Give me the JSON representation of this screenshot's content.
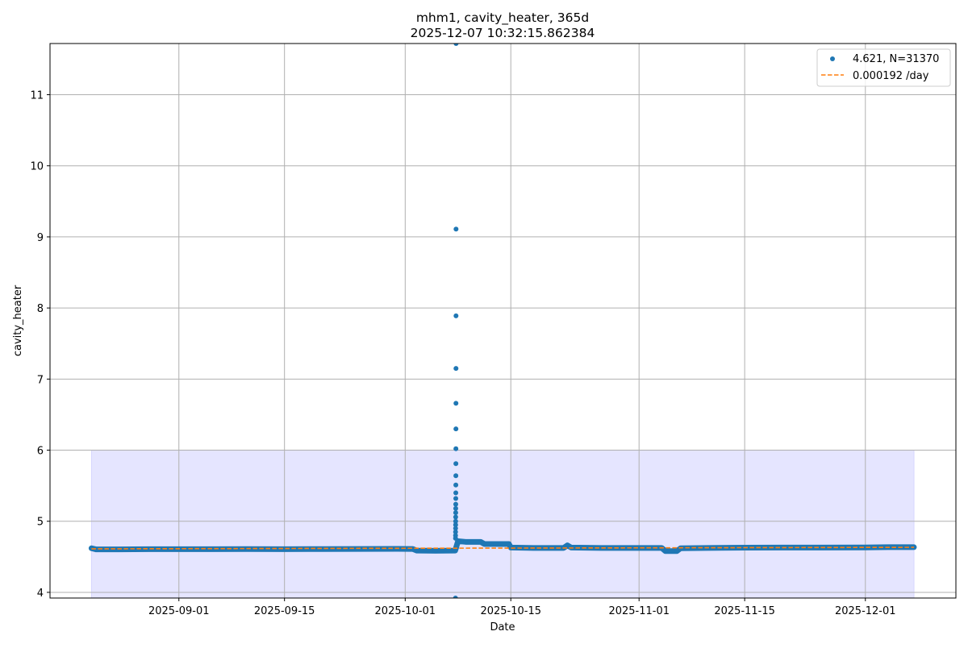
{
  "chart_data": {
    "type": "scatter",
    "title": "mhm1, cavity_heater, 365d",
    "subtitle": "2025-12-07 10:32:15.862384",
    "xlabel": "Date",
    "ylabel": "cavity_heater",
    "xlim": [
      "2025-08-14T22:00",
      "2025-12-13T00:00"
    ],
    "ylim": [
      3.92,
      11.72
    ],
    "grid": true,
    "legend_placement": "top-right",
    "x_ticks": [
      "2025-09-01",
      "2025-09-15",
      "2025-10-01",
      "2025-10-15",
      "2025-11-01",
      "2025-11-15",
      "2025-12-01"
    ],
    "y_ticks": [
      4,
      5,
      6,
      7,
      8,
      9,
      10,
      11
    ],
    "colors": {
      "points": "#1f77b4",
      "trend": "#ff7f0e",
      "band": "#e5e5ff",
      "grid": "#b0b0b0"
    },
    "shaded_region": {
      "x": [
        "2025-08-20T10:00",
        "2025-12-07T10:32"
      ],
      "y": [
        3.9,
        6.0
      ]
    },
    "series": [
      {
        "name": "4.621, N=31370",
        "kind": "scatter",
        "points": [
          [
            "2025-08-20T10:00",
            4.62
          ],
          [
            "2025-08-21",
            4.605
          ],
          [
            "2025-08-24",
            4.605
          ],
          [
            "2025-08-28",
            4.607
          ],
          [
            "2025-09-01",
            4.607
          ],
          [
            "2025-09-05",
            4.608
          ],
          [
            "2025-09-10",
            4.609
          ],
          [
            "2025-09-15",
            4.608
          ],
          [
            "2025-09-20",
            4.609
          ],
          [
            "2025-09-25",
            4.61
          ],
          [
            "2025-09-30",
            4.611
          ],
          [
            "2025-10-02",
            4.61
          ],
          [
            "2025-10-02T12:00",
            4.588
          ],
          [
            "2025-10-05",
            4.585
          ],
          [
            "2025-10-07T15:00",
            4.588
          ],
          [
            "2025-10-07T16:00",
            4.6
          ],
          [
            "2025-10-07T16:05",
            4.76
          ],
          [
            "2025-10-07T16:10",
            4.8
          ],
          [
            "2025-10-07T16:15",
            4.85
          ],
          [
            "2025-10-07T16:20",
            4.9
          ],
          [
            "2025-10-07T16:25",
            4.95
          ],
          [
            "2025-10-07T16:30",
            5.0
          ],
          [
            "2025-10-07T16:35",
            5.06
          ],
          [
            "2025-10-07T16:40",
            5.12
          ],
          [
            "2025-10-07T16:45",
            5.18
          ],
          [
            "2025-10-07T16:50",
            5.24
          ],
          [
            "2025-10-07T16:55",
            5.32
          ],
          [
            "2025-10-07T17:00",
            5.4
          ],
          [
            "2025-10-07T17:05",
            5.51
          ],
          [
            "2025-10-07T17:10",
            5.64
          ],
          [
            "2025-10-07T17:15",
            5.81
          ],
          [
            "2025-10-07T17:20",
            6.02
          ],
          [
            "2025-10-07T17:25",
            6.3
          ],
          [
            "2025-10-07T17:30",
            6.66
          ],
          [
            "2025-10-07T17:35",
            7.15
          ],
          [
            "2025-10-07T17:40",
            7.89
          ],
          [
            "2025-10-07T17:45",
            9.11
          ],
          [
            "2025-10-07T17:50",
            11.72
          ],
          [
            "2025-10-07T16:00",
            3.92
          ],
          [
            "2025-10-08",
            4.72
          ],
          [
            "2025-10-09",
            4.71
          ],
          [
            "2025-10-11",
            4.71
          ],
          [
            "2025-10-11T12:00",
            4.68
          ],
          [
            "2025-10-13",
            4.68
          ],
          [
            "2025-10-14T18:00",
            4.68
          ],
          [
            "2025-10-15",
            4.63
          ],
          [
            "2025-10-18",
            4.625
          ],
          [
            "2025-10-22",
            4.625
          ],
          [
            "2025-10-22T12:00",
            4.66
          ],
          [
            "2025-10-23",
            4.63
          ],
          [
            "2025-10-27",
            4.625
          ],
          [
            "2025-11-01",
            4.625
          ],
          [
            "2025-11-04",
            4.625
          ],
          [
            "2025-11-04T12:00",
            4.58
          ],
          [
            "2025-11-06",
            4.58
          ],
          [
            "2025-11-06T12:00",
            4.62
          ],
          [
            "2025-11-10",
            4.625
          ],
          [
            "2025-11-15",
            4.628
          ],
          [
            "2025-11-20",
            4.63
          ],
          [
            "2025-11-25",
            4.63
          ],
          [
            "2025-12-01",
            4.632
          ],
          [
            "2025-12-04",
            4.635
          ],
          [
            "2025-12-07T10:32",
            4.635
          ]
        ]
      },
      {
        "name": "0.000192 /day",
        "kind": "line",
        "style": "dashed",
        "points": [
          [
            "2025-08-20T10:00",
            4.612
          ],
          [
            "2025-12-07T10:32",
            4.633
          ]
        ]
      }
    ]
  }
}
